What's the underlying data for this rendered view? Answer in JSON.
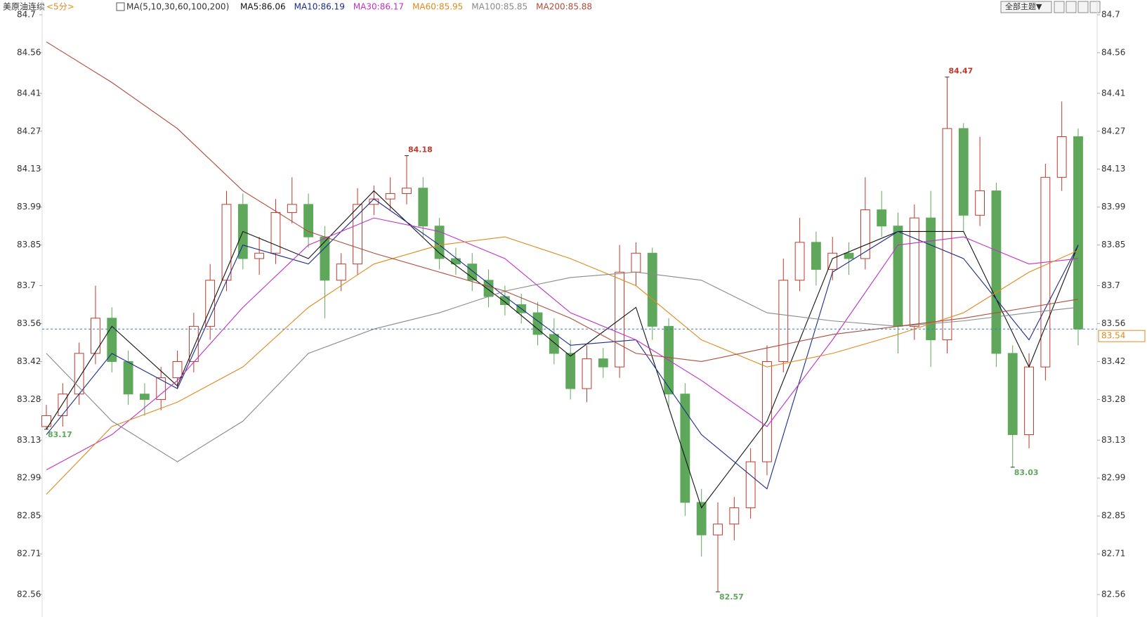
{
  "chart_data": {
    "type": "candlestick",
    "title": "美原油连续",
    "period": "<5分>",
    "indicator": "MA(5,10,30,60,100,200)",
    "legend": [
      {
        "label": "MA5:86.06",
        "color": "#111111"
      },
      {
        "label": "MA10:86.19",
        "color": "#1a2a8a"
      },
      {
        "label": "MA30:86.17",
        "color": "#c030c8"
      },
      {
        "label": "MA60:85.95",
        "color": "#e08a1e"
      },
      {
        "label": "MA100:85.85",
        "color": "#8a8a8a"
      },
      {
        "label": "MA200:85.88",
        "color": "#b04a3a"
      }
    ],
    "theme_button": "全部主题▼",
    "up_color": "#c0392b",
    "down_color": "#5fa85b",
    "ylim": [
      82.56,
      84.7
    ],
    "yticks": [
      84.7,
      84.56,
      84.41,
      84.27,
      84.13,
      83.99,
      83.85,
      83.7,
      83.56,
      83.42,
      83.28,
      83.13,
      82.99,
      82.85,
      82.71,
      82.56
    ],
    "open": [
      83.18,
      83.22,
      83.3,
      83.45,
      83.58,
      83.42,
      83.3,
      83.28,
      83.36,
      83.42,
      83.55,
      83.72,
      84.0,
      83.8,
      83.82,
      83.97,
      84.0,
      83.88,
      83.72,
      83.78,
      84.0,
      84.02,
      84.04,
      84.06,
      83.92,
      83.8,
      83.78,
      83.72,
      83.66,
      83.63,
      83.6,
      83.52,
      83.45,
      83.32,
      83.43,
      83.4,
      83.75,
      83.82,
      83.55,
      83.3,
      82.9,
      82.78,
      82.82,
      82.88,
      83.05,
      83.42,
      83.72,
      83.86,
      83.76,
      83.82,
      83.8,
      83.98,
      83.92,
      83.55,
      83.95,
      83.5,
      84.28,
      83.96,
      84.05,
      83.45,
      83.15,
      83.4,
      84.1,
      84.25
    ],
    "high": [
      83.26,
      83.34,
      83.49,
      83.7,
      83.62,
      83.46,
      83.34,
      83.4,
      83.46,
      83.6,
      83.78,
      84.05,
      84.04,
      83.88,
      84.02,
      84.1,
      84.04,
      83.92,
      83.82,
      84.06,
      84.07,
      84.1,
      84.18,
      84.1,
      83.95,
      83.84,
      83.82,
      83.76,
      83.7,
      83.67,
      83.64,
      83.58,
      83.5,
      83.48,
      83.47,
      83.85,
      83.86,
      83.84,
      83.58,
      83.34,
      82.95,
      82.9,
      82.92,
      83.1,
      83.48,
      83.8,
      83.95,
      83.9,
      83.88,
      83.86,
      84.1,
      84.05,
      83.97,
      84.0,
      84.05,
      84.47,
      84.3,
      84.25,
      84.08,
      83.48,
      83.45,
      84.15,
      84.38,
      84.28
    ],
    "low": [
      83.17,
      83.18,
      83.26,
      83.41,
      83.38,
      83.26,
      83.22,
      83.24,
      83.32,
      83.38,
      83.5,
      83.68,
      83.76,
      83.74,
      83.78,
      83.93,
      83.84,
      83.58,
      83.68,
      83.74,
      83.96,
      83.98,
      84.0,
      83.88,
      83.76,
      83.74,
      83.68,
      83.62,
      83.59,
      83.56,
      83.48,
      83.41,
      83.28,
      83.27,
      83.36,
      83.36,
      83.7,
      83.5,
      83.25,
      82.85,
      82.7,
      82.57,
      82.76,
      82.84,
      83.0,
      83.38,
      83.68,
      83.7,
      83.72,
      83.74,
      83.76,
      83.88,
      83.45,
      83.5,
      83.4,
      83.45,
      83.9,
      83.92,
      83.4,
      83.03,
      83.1,
      83.35,
      84.05,
      83.48
    ],
    "close": [
      83.22,
      83.3,
      83.45,
      83.58,
      83.42,
      83.3,
      83.28,
      83.36,
      83.42,
      83.55,
      83.72,
      84.0,
      83.8,
      83.82,
      83.97,
      84.0,
      83.88,
      83.72,
      83.78,
      84.0,
      84.02,
      84.04,
      84.06,
      83.92,
      83.8,
      83.78,
      83.72,
      83.66,
      83.63,
      83.6,
      83.52,
      83.45,
      83.32,
      83.43,
      83.4,
      83.75,
      83.82,
      83.55,
      83.3,
      82.9,
      82.78,
      82.82,
      82.88,
      83.05,
      83.42,
      83.72,
      83.86,
      83.76,
      83.82,
      83.8,
      83.98,
      83.92,
      83.55,
      83.95,
      83.5,
      84.28,
      83.96,
      84.05,
      83.45,
      83.15,
      83.4,
      84.1,
      84.25,
      83.54
    ],
    "annotations": [
      {
        "series": "low",
        "index": 0,
        "color": "#5fa85b"
      },
      {
        "series": "high",
        "index": 22,
        "color": "#c0392b"
      },
      {
        "series": "low",
        "index": 41,
        "color": "#5fa85b"
      },
      {
        "series": "high",
        "index": 55,
        "color": "#c0392b"
      },
      {
        "series": "low",
        "index": 59,
        "color": "#5fa85b"
      }
    ],
    "last_price_color": "#e08a1e",
    "ma_x": [
      0,
      4,
      8,
      12,
      16,
      20,
      24,
      28,
      32,
      36,
      40,
      44,
      48,
      52,
      56,
      60,
      63
    ],
    "ma": [
      {
        "name": "MA5",
        "color": "#111111",
        "values": [
          83.17,
          83.55,
          83.33,
          83.9,
          83.8,
          84.05,
          83.82,
          83.64,
          83.44,
          83.62,
          82.88,
          83.2,
          83.8,
          83.9,
          83.9,
          83.4,
          83.85
        ]
      },
      {
        "name": "MA10",
        "color": "#1a2a8a",
        "values": [
          83.15,
          83.45,
          83.32,
          83.85,
          83.78,
          84.02,
          83.85,
          83.66,
          83.48,
          83.5,
          83.15,
          82.95,
          83.75,
          83.9,
          83.8,
          83.5,
          83.85
        ]
      },
      {
        "name": "MA30",
        "color": "#c030c8",
        "values": [
          83.02,
          83.15,
          83.35,
          83.62,
          83.85,
          83.95,
          83.9,
          83.8,
          83.6,
          83.5,
          83.35,
          83.18,
          83.5,
          83.85,
          83.88,
          83.78,
          83.8
        ]
      },
      {
        "name": "MA60",
        "color": "#e08a1e",
        "values": [
          82.93,
          83.18,
          83.27,
          83.4,
          83.62,
          83.78,
          83.85,
          83.88,
          83.8,
          83.7,
          83.5,
          83.4,
          83.45,
          83.52,
          83.6,
          83.75,
          83.83
        ]
      },
      {
        "name": "MA100",
        "color": "#8a8a8a",
        "values": [
          83.45,
          83.2,
          83.05,
          83.2,
          83.45,
          83.54,
          83.6,
          83.68,
          83.73,
          83.75,
          83.72,
          83.6,
          83.57,
          83.55,
          83.57,
          83.6,
          83.62
        ]
      },
      {
        "name": "MA200",
        "color": "#b04a3a",
        "values": [
          84.6,
          84.45,
          84.28,
          84.05,
          83.9,
          83.82,
          83.75,
          83.68,
          83.58,
          83.45,
          83.42,
          83.47,
          83.52,
          83.55,
          83.58,
          83.62,
          83.65
        ]
      }
    ]
  }
}
